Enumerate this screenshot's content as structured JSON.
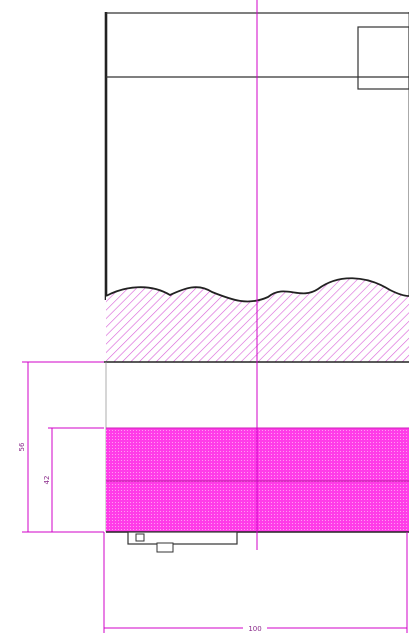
{
  "drawing": {
    "dimensions": {
      "overall_width": "100",
      "outer_height": "56",
      "inner_height": "42"
    },
    "colors": {
      "outline": "#222222",
      "dimension": "#d000c8",
      "hatch": "#e070e0",
      "fill": "#ff3ce8",
      "background": "#ffffff"
    }
  }
}
